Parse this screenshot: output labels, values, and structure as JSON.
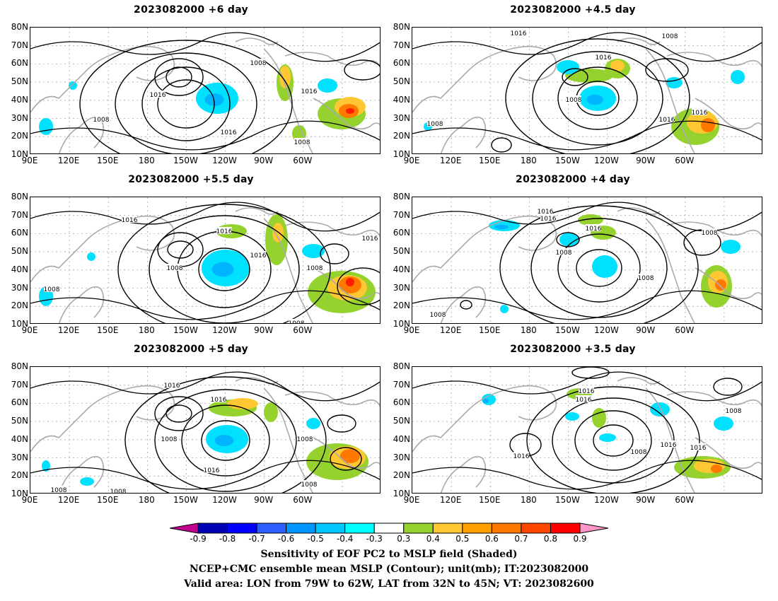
{
  "panels": [
    {
      "title": "2023082000  +6  day"
    },
    {
      "title": "2023082000  +4.5  day"
    },
    {
      "title": "2023082000  +5.5  day"
    },
    {
      "title": "2023082000  +4  day"
    },
    {
      "title": "2023082000  +5  day"
    },
    {
      "title": "2023082000  +3.5  day"
    }
  ],
  "y_ticks": [
    "80N",
    "70N",
    "60N",
    "50N",
    "40N",
    "30N",
    "20N",
    "10N"
  ],
  "x_ticks": [
    "90E",
    "120E",
    "150E",
    "180",
    "150W",
    "120W",
    "90W",
    "60W"
  ],
  "contour_labels": [
    "1016",
    "1008"
  ],
  "colorbar": {
    "labels": [
      "-0.9",
      "-0.8",
      "-0.7",
      "-0.6",
      "-0.5",
      "-0.4",
      "-0.3",
      "0.3",
      "0.4",
      "0.5",
      "0.6",
      "0.7",
      "0.8",
      "0.9"
    ],
    "colors": [
      "#c2008f",
      "#0000b4",
      "#0000ff",
      "#2b5fff",
      "#0096ff",
      "#00c8ff",
      "#00ffff",
      "#ffffff",
      "#96d22d",
      "#ffc832",
      "#ffa000",
      "#ff7800",
      "#ff4600",
      "#ff0000",
      "#ff96c8"
    ]
  },
  "footer": {
    "line1": "Sensitivity of EOF PC2 to MSLP field (Shaded)",
    "line2": "NCEP+CMC ensemble mean MSLP (Contour); unit(mb); IT:2023082000",
    "line3": "Valid area: LON from 79W to 62W, LAT from 32N to 45N; VT: 2023082600"
  },
  "map_colors": {
    "coast": "#aaaaaa",
    "contour": "#000000",
    "grid": "#999999",
    "neg": "#00e0ff",
    "neg_strong": "#0096ff",
    "pos_low": "#96d22d",
    "pos_mid": "#ffc832",
    "pos_high": "#ff7800",
    "pos_max": "#ff1e00"
  }
}
